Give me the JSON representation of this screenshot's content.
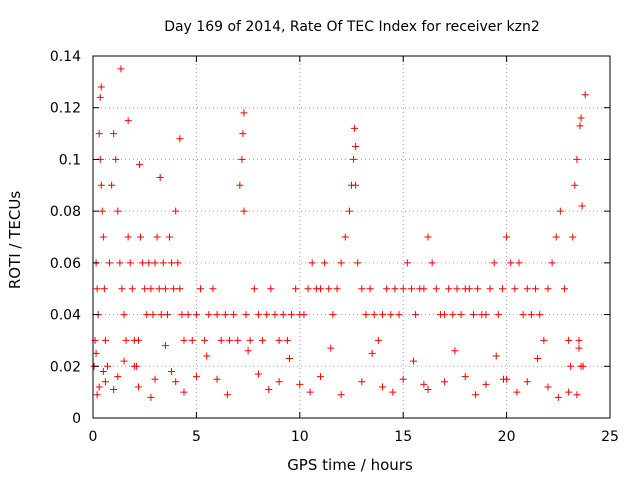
{
  "chart_data": {
    "type": "scatter",
    "title": "Day 169 of 2014, Rate Of TEC Index for receiver kzn2",
    "xlabel": "GPS time / hours",
    "ylabel": "ROTI / TECUs",
    "xlim": [
      0,
      25
    ],
    "ylim": [
      0,
      0.14
    ],
    "x_ticks": [
      "0",
      "5",
      "10",
      "15",
      "20",
      "25"
    ],
    "y_ticks": [
      "0",
      "0.02",
      "0.04",
      "0.06",
      "0.08",
      "0.1",
      "0.12",
      "0.14"
    ],
    "grid": true,
    "marker": "+",
    "color": "#ff0000",
    "series": [
      {
        "name": "ROTI",
        "x": [
          0.05,
          0.1,
          0.15,
          0.2,
          0.25,
          0.3,
          0.35,
          0.4,
          0.45,
          0.5,
          0.55,
          0.6,
          0.7,
          0.8,
          0.9,
          1.0,
          1.1,
          1.2,
          1.3,
          1.4,
          1.5,
          1.6,
          1.7,
          1.8,
          1.9,
          2.0,
          2.1,
          2.2,
          2.3,
          2.4,
          2.5,
          2.6,
          2.7,
          2.8,
          2.9,
          3.0,
          3.1,
          3.2,
          3.3,
          3.4,
          3.5,
          3.6,
          3.7,
          3.8,
          3.9,
          4.0,
          4.1,
          4.2,
          4.3,
          4.4,
          4.6,
          4.8,
          5.0,
          5.2,
          5.4,
          5.6,
          5.8,
          6.0,
          6.2,
          6.4,
          6.6,
          6.8,
          7.0,
          7.1,
          7.2,
          7.3,
          7.4,
          7.6,
          7.8,
          8.0,
          8.2,
          8.4,
          8.6,
          8.8,
          9.0,
          9.2,
          9.4,
          9.6,
          9.8,
          10.0,
          10.2,
          10.4,
          10.6,
          10.8,
          11.0,
          11.2,
          11.4,
          11.6,
          11.8,
          12.0,
          12.2,
          12.4,
          12.5,
          12.6,
          12.7,
          12.8,
          13.0,
          13.2,
          13.4,
          13.6,
          13.8,
          14.0,
          14.2,
          14.4,
          14.6,
          14.8,
          15.0,
          15.2,
          15.4,
          15.6,
          15.8,
          16.0,
          16.2,
          16.4,
          16.6,
          16.8,
          17.0,
          17.2,
          17.4,
          17.6,
          17.8,
          18.0,
          18.2,
          18.4,
          18.6,
          18.8,
          19.0,
          19.2,
          19.4,
          19.6,
          19.8,
          20.0,
          20.2,
          20.4,
          20.6,
          20.8,
          21.0,
          21.2,
          21.4,
          21.6,
          21.8,
          22.0,
          22.2,
          22.4,
          22.6,
          22.8,
          23.0,
          23.1,
          23.2,
          23.3,
          23.4,
          23.5,
          23.6,
          23.7,
          23.8,
          0.35,
          0.4,
          1.35,
          1.7,
          2.25,
          3.25,
          4.2,
          7.25,
          7.3,
          12.65,
          12.7,
          23.55,
          23.6,
          23.65,
          19.85,
          0.3,
          0.5,
          0.6,
          1.2,
          2.0,
          2.2,
          3.0,
          3.8,
          4.0,
          5.0,
          6.0,
          8.0,
          9.0,
          10.0,
          11.0,
          13.0,
          14.0,
          15.0,
          16.0,
          17.0,
          18.0,
          19.0,
          20.0,
          21.0,
          22.0,
          23.0,
          0.2,
          1.0,
          2.8,
          4.4,
          6.5,
          8.5,
          10.5,
          12.0,
          14.5,
          16.2,
          18.5,
          20.5,
          22.5,
          23.4,
          0.15,
          1.5,
          3.5,
          5.5,
          7.5,
          9.5,
          11.5,
          13.5,
          15.5,
          17.5,
          19.5,
          21.5,
          23.5
        ],
        "y": [
          0.02,
          0.03,
          0.06,
          0.05,
          0.04,
          0.11,
          0.1,
          0.09,
          0.08,
          0.07,
          0.05,
          0.03,
          0.02,
          0.06,
          0.09,
          0.11,
          0.1,
          0.08,
          0.06,
          0.05,
          0.04,
          0.03,
          0.07,
          0.06,
          0.05,
          0.03,
          0.02,
          0.03,
          0.07,
          0.06,
          0.05,
          0.04,
          0.06,
          0.05,
          0.04,
          0.06,
          0.07,
          0.05,
          0.04,
          0.06,
          0.05,
          0.04,
          0.07,
          0.06,
          0.05,
          0.08,
          0.06,
          0.05,
          0.04,
          0.03,
          0.04,
          0.03,
          0.04,
          0.05,
          0.03,
          0.04,
          0.05,
          0.04,
          0.03,
          0.04,
          0.03,
          0.04,
          0.03,
          0.09,
          0.1,
          0.08,
          0.04,
          0.03,
          0.05,
          0.04,
          0.03,
          0.04,
          0.05,
          0.04,
          0.03,
          0.04,
          0.03,
          0.04,
          0.05,
          0.04,
          0.04,
          0.05,
          0.06,
          0.05,
          0.05,
          0.06,
          0.05,
          0.04,
          0.05,
          0.06,
          0.07,
          0.08,
          0.09,
          0.1,
          0.09,
          0.06,
          0.05,
          0.04,
          0.05,
          0.04,
          0.03,
          0.04,
          0.05,
          0.04,
          0.05,
          0.04,
          0.05,
          0.06,
          0.05,
          0.04,
          0.05,
          0.05,
          0.07,
          0.06,
          0.05,
          0.04,
          0.04,
          0.05,
          0.04,
          0.05,
          0.04,
          0.05,
          0.05,
          0.04,
          0.05,
          0.04,
          0.04,
          0.05,
          0.06,
          0.04,
          0.05,
          0.07,
          0.06,
          0.05,
          0.06,
          0.04,
          0.05,
          0.04,
          0.05,
          0.04,
          0.03,
          0.05,
          0.06,
          0.07,
          0.08,
          0.05,
          0.03,
          0.02,
          0.07,
          0.09,
          0.1,
          0.03,
          0.02,
          0.02,
          0.125,
          0.124,
          0.128,
          0.135,
          0.115,
          0.098,
          0.093,
          0.108,
          0.11,
          0.118,
          0.112,
          0.105,
          0.113,
          0.116,
          0.082,
          0.015,
          0.012,
          0.018,
          0.014,
          0.016,
          0.02,
          0.012,
          0.015,
          0.018,
          0.014,
          0.016,
          0.015,
          0.017,
          0.014,
          0.013,
          0.016,
          0.014,
          0.012,
          0.015,
          0.013,
          0.014,
          0.016,
          0.013,
          0.015,
          0.014,
          0.012,
          0.01,
          0.009,
          0.011,
          0.008,
          0.01,
          0.009,
          0.011,
          0.01,
          0.009,
          0.01,
          0.011,
          0.009,
          0.01,
          0.008,
          0.009,
          0.025,
          0.022,
          0.028,
          0.024,
          0.026,
          0.023,
          0.027,
          0.025,
          0.022,
          0.026,
          0.024,
          0.023,
          0.027
        ]
      }
    ]
  }
}
